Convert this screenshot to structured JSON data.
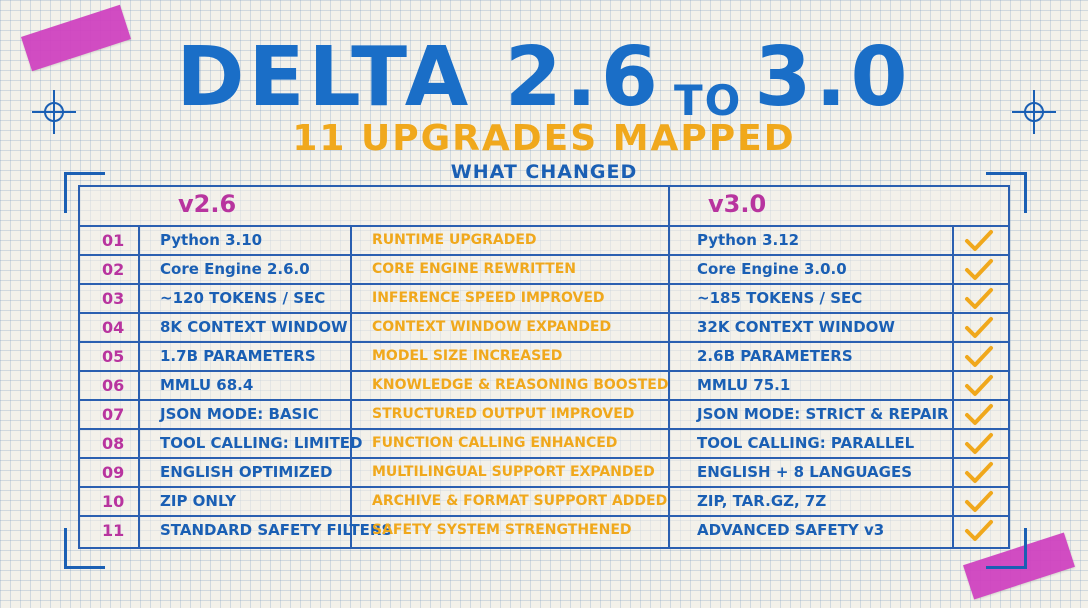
{
  "header": {
    "title_part1": "DELTA 2.6",
    "title_connector": "TO",
    "title_part2": "3.0",
    "subtitle": "11 UPGRADES MAPPED",
    "kicker": "WHAT CHANGED"
  },
  "table": {
    "col_old": "v2.6",
    "col_new": "v3.0",
    "rows": [
      {
        "num": "01",
        "old": "Python 3.10",
        "change": "RUNTIME UPGRADED",
        "new": "Python 3.12",
        "icon": "check-icon"
      },
      {
        "num": "02",
        "old": "Core Engine 2.6.0",
        "change": "CORE ENGINE REWRITTEN",
        "new": "Core Engine 3.0.0",
        "icon": "check-icon"
      },
      {
        "num": "03",
        "old": "~120 TOKENS / SEC",
        "change": "INFERENCE SPEED IMPROVED",
        "new": "~185 TOKENS / SEC",
        "icon": "check-icon"
      },
      {
        "num": "04",
        "old": "8K CONTEXT WINDOW",
        "change": "CONTEXT WINDOW EXPANDED",
        "new": "32K CONTEXT WINDOW",
        "icon": "check-icon"
      },
      {
        "num": "05",
        "old": "1.7B PARAMETERS",
        "change": "MODEL SIZE INCREASED",
        "new": "2.6B PARAMETERS",
        "icon": "check-icon"
      },
      {
        "num": "06",
        "old": "MMLU 68.4",
        "change": "KNOWLEDGE & REASONING BOOSTED",
        "new": "MMLU 75.1",
        "icon": "check-icon"
      },
      {
        "num": "07",
        "old": "JSON MODE: BASIC",
        "change": "STRUCTURED OUTPUT IMPROVED",
        "new": "JSON MODE: STRICT & REPAIR",
        "icon": "check-icon"
      },
      {
        "num": "08",
        "old": "TOOL CALLING: LIMITED",
        "change": "FUNCTION CALLING ENHANCED",
        "new": "TOOL CALLING: PARALLEL",
        "icon": "check-icon"
      },
      {
        "num": "09",
        "old": "ENGLISH OPTIMIZED",
        "change": "MULTILINGUAL SUPPORT EXPANDED",
        "new": "ENGLISH + 8 LANGUAGES",
        "icon": "check-icon"
      },
      {
        "num": "10",
        "old": "ZIP ONLY",
        "change": "ARCHIVE & FORMAT SUPPORT ADDED",
        "new": "ZIP, TAR.GZ, 7Z",
        "icon": "check-icon"
      },
      {
        "num": "11",
        "old": "STANDARD SAFETY FILTERS",
        "change": "SAFETY SYSTEM STRENGTHENED",
        "new": "ADVANCED SAFETY v3",
        "icon": "check-icon"
      }
    ]
  },
  "colors": {
    "blue": "#1a6ec7",
    "orange": "#f0a81c",
    "magenta": "#b8349f",
    "tape": "#cf3fbf",
    "paper": "#f3f1ea"
  }
}
